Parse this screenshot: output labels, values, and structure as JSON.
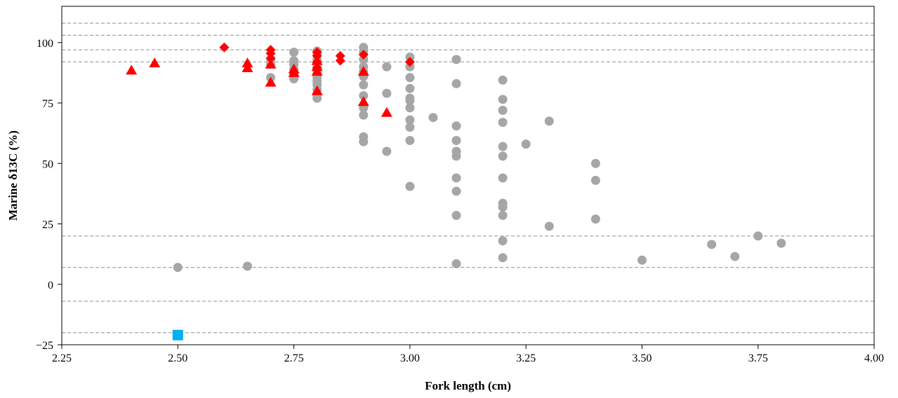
{
  "chart_data": {
    "type": "scatter",
    "title": "",
    "xlabel": "Fork length (cm)",
    "ylabel": "Marine  δ13C (%)",
    "xlim": [
      2.25,
      4.0
    ],
    "ylim": [
      -25,
      115
    ],
    "xticks": [
      2.25,
      2.5,
      2.75,
      3.0,
      3.25,
      3.5,
      3.75,
      4.0
    ],
    "xtick_labels": [
      "2.25",
      "2.50",
      "2.75",
      "3.00",
      "3.25",
      "3.50",
      "3.75",
      "4.00"
    ],
    "yticks": [
      -25,
      0,
      25,
      50,
      75,
      100
    ],
    "ytick_labels": [
      "−25",
      "0",
      "25",
      "50",
      "75",
      "100"
    ],
    "grid": false,
    "legend": false,
    "reference_lines": {
      "y": [
        108,
        103,
        97,
        92,
        20,
        7,
        -7,
        -20
      ],
      "style": "dashed",
      "color": "#a6a6a6"
    },
    "series": [
      {
        "marker": "circle",
        "color": "#a6a6a6",
        "points": [
          [
            2.5,
            7
          ],
          [
            2.65,
            7.5
          ],
          [
            2.7,
            85.5
          ],
          [
            2.7,
            91
          ],
          [
            2.7,
            93
          ],
          [
            2.75,
            96
          ],
          [
            2.75,
            92.5
          ],
          [
            2.75,
            91
          ],
          [
            2.75,
            89
          ],
          [
            2.75,
            87
          ],
          [
            2.75,
            85
          ],
          [
            2.8,
            96.5
          ],
          [
            2.8,
            95
          ],
          [
            2.8,
            93
          ],
          [
            2.8,
            91.5
          ],
          [
            2.8,
            90
          ],
          [
            2.8,
            88.5
          ],
          [
            2.8,
            87
          ],
          [
            2.8,
            85.5
          ],
          [
            2.8,
            84
          ],
          [
            2.8,
            82.5
          ],
          [
            2.8,
            80.5
          ],
          [
            2.8,
            78.5
          ],
          [
            2.8,
            77
          ],
          [
            2.9,
            98
          ],
          [
            2.9,
            96
          ],
          [
            2.9,
            93
          ],
          [
            2.9,
            90
          ],
          [
            2.9,
            88
          ],
          [
            2.9,
            86
          ],
          [
            2.9,
            82.5
          ],
          [
            2.9,
            78
          ],
          [
            2.9,
            73
          ],
          [
            2.9,
            70
          ],
          [
            2.9,
            61
          ],
          [
            2.9,
            59
          ],
          [
            2.95,
            90
          ],
          [
            2.95,
            79
          ],
          [
            2.95,
            55
          ],
          [
            3.0,
            94
          ],
          [
            3.0,
            90
          ],
          [
            3.0,
            85.5
          ],
          [
            3.0,
            81
          ],
          [
            3.0,
            77
          ],
          [
            3.0,
            76
          ],
          [
            3.0,
            73
          ],
          [
            3.0,
            68
          ],
          [
            3.0,
            65
          ],
          [
            3.0,
            59.5
          ],
          [
            3.0,
            40.5
          ],
          [
            3.05,
            69
          ],
          [
            3.1,
            93
          ],
          [
            3.1,
            83
          ],
          [
            3.1,
            65.5
          ],
          [
            3.1,
            59.5
          ],
          [
            3.1,
            55
          ],
          [
            3.1,
            53
          ],
          [
            3.1,
            44
          ],
          [
            3.1,
            38.5
          ],
          [
            3.1,
            28.5
          ],
          [
            3.1,
            8.5
          ],
          [
            3.2,
            84.5
          ],
          [
            3.2,
            76.5
          ],
          [
            3.2,
            72
          ],
          [
            3.2,
            67
          ],
          [
            3.2,
            57
          ],
          [
            3.2,
            53
          ],
          [
            3.2,
            44
          ],
          [
            3.2,
            33.5
          ],
          [
            3.2,
            32
          ],
          [
            3.2,
            28.5
          ],
          [
            3.2,
            18
          ],
          [
            3.2,
            11
          ],
          [
            3.25,
            58
          ],
          [
            3.3,
            67.5
          ],
          [
            3.3,
            24
          ],
          [
            3.4,
            50
          ],
          [
            3.4,
            43
          ],
          [
            3.4,
            27
          ],
          [
            3.5,
            10
          ],
          [
            3.65,
            16.5
          ],
          [
            3.7,
            11.5
          ],
          [
            3.75,
            20
          ],
          [
            3.8,
            17
          ]
        ]
      },
      {
        "marker": "triangle",
        "color": "#ff0000",
        "points": [
          [
            2.4,
            88.5
          ],
          [
            2.45,
            91.5
          ],
          [
            2.65,
            91.5
          ],
          [
            2.65,
            89.5
          ],
          [
            2.7,
            91
          ],
          [
            2.7,
            83.5
          ],
          [
            2.75,
            89
          ],
          [
            2.75,
            87.5
          ],
          [
            2.8,
            92.5
          ],
          [
            2.8,
            90
          ],
          [
            2.8,
            88
          ],
          [
            2.8,
            80
          ],
          [
            2.9,
            88
          ],
          [
            2.9,
            75.5
          ],
          [
            2.95,
            71
          ]
        ]
      },
      {
        "marker": "diamond",
        "color": "#ff0000",
        "points": [
          [
            2.6,
            98
          ],
          [
            2.7,
            97
          ],
          [
            2.7,
            95.5
          ],
          [
            2.7,
            93.5
          ],
          [
            2.8,
            96
          ],
          [
            2.8,
            94.5
          ],
          [
            2.8,
            92
          ],
          [
            2.8,
            89.5
          ],
          [
            2.85,
            94.5
          ],
          [
            2.85,
            92.5
          ],
          [
            2.9,
            95
          ],
          [
            3.0,
            92
          ]
        ]
      },
      {
        "marker": "square",
        "color": "#00b0f0",
        "points": [
          [
            2.5,
            -21
          ]
        ]
      }
    ]
  }
}
